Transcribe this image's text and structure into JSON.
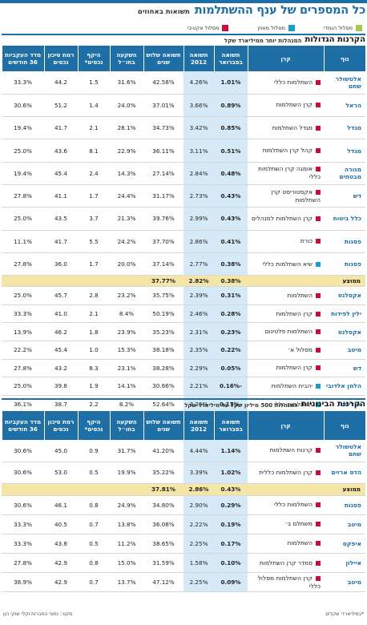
{
  "header": {
    "title": "כל המספרים של ענף ההשתלמות",
    "subtitle": "תשואות באחוזים"
  },
  "legend": [
    {
      "label": "מסלול הנמדי",
      "color": "#a6c94b"
    },
    {
      "label": "מסלול מאוזן",
      "color": "#13a0c4"
    },
    {
      "label": "מסלול אקטיבי",
      "color": "#cc0a3e"
    }
  ],
  "columns": [
    "גוף",
    "קרן",
    "תשואה בפברואר",
    "תשואה 2012",
    "תשואה שלוש שנים",
    "השקעה בחו״ל",
    "היקף נכסים*",
    "רמת סיכון נכסים",
    "מדד העקביות 36 חודשים"
  ],
  "section1": {
    "title": "הקרנות הגדולות",
    "subtitle": "המנהלות יותר ממיליארד שקל",
    "rows": [
      {
        "body": "אלטשולר שחם",
        "fund": "השתלמות כללי",
        "color": "#cc0a3e",
        "feb": "1.01%",
        "y2012": "4.26%",
        "y3": "42.58%",
        "abroad": "31.6%",
        "assets": "1.5",
        "risk": "44.2",
        "idx": "33.3%"
      },
      {
        "body": "הראל",
        "fund": "קרן השתלמות",
        "color": "#cc0a3e",
        "feb": "0.89%",
        "y2012": "3.66%",
        "y3": "37.01%",
        "abroad": "24.0%",
        "assets": "1.4",
        "risk": "51.2",
        "idx": "30.6%"
      },
      {
        "body": "מגדל",
        "fund": "מגדל השתלמות",
        "color": "#cc0a3e",
        "feb": "0.85%",
        "y2012": "3.42%",
        "y3": "34.73%",
        "abroad": "28.1%",
        "assets": "2.1",
        "risk": "41.7",
        "idx": "19.4%"
      },
      {
        "body": "מגדל",
        "fund": "קהל קרן השתלמות",
        "color": "#cc0a3e",
        "feb": "0.51%",
        "y2012": "3.11%",
        "y3": "36.11%",
        "abroad": "22.9%",
        "assets": "8.1",
        "risk": "43.6",
        "idx": "25.0%"
      },
      {
        "body": "מנורה מבטחים",
        "fund": "אומגה קרן השתלמות כללי",
        "color": "#cc0a3e",
        "feb": "0.48%",
        "y2012": "2.84%",
        "y3": "27.14%",
        "abroad": "14.3%",
        "assets": "2.4",
        "risk": "45.4",
        "idx": "19.4%"
      },
      {
        "body": "דש",
        "fund": "אקסטוריסט קרן השתלמות",
        "color": "#cc0a3e",
        "feb": "0.43%",
        "y2012": "2.73%",
        "y3": "31.17%",
        "abroad": "24.4%",
        "assets": "1.7",
        "risk": "41.1",
        "idx": "27.8%"
      },
      {
        "body": "כלל ביטוח",
        "fund": "קרן השתלמות למנהלים",
        "color": "#cc0a3e",
        "feb": "0.43%",
        "y2012": "2.99%",
        "y3": "39.76%",
        "abroad": "21.3%",
        "assets": "3.7",
        "risk": "43.5",
        "idx": "25.0%"
      },
      {
        "body": "פסגות",
        "fund": "כורת",
        "color": "#cc0a3e",
        "feb": "0.41%",
        "y2012": "2.86%",
        "y3": "37.70%",
        "abroad": "24.2%",
        "assets": "5.5",
        "risk": "41.7",
        "idx": "11.1%"
      },
      {
        "body": "פסגות",
        "fund": "שיא השתלמות כללי",
        "color": "#13a0c4",
        "feb": "0.38%",
        "y2012": "2.77%",
        "y3": "37.14%",
        "abroad": "20.0%",
        "assets": "1.7",
        "risk": "36.0",
        "idx": "27.8%"
      }
    ],
    "avg": {
      "label": "ממוצע",
      "feb": "0.38%",
      "y2012": "2.82%",
      "y3": "37.77%"
    },
    "rows2": [
      {
        "body": "אקסלנס",
        "fund": "השתלמות",
        "color": "#cc0a3e",
        "feb": "0.31%",
        "y2012": "2.39%",
        "y3": "35.75%",
        "abroad": "23.2%",
        "assets": "2.8",
        "risk": "45.7",
        "idx": "25.0%"
      },
      {
        "body": "ילין לפידות",
        "fund": "קרן השתלמות",
        "color": "#cc0a3e",
        "feb": "0.28%",
        "y2012": "2.46%",
        "y3": "50.19%",
        "abroad": "8.4%",
        "assets": "2.1",
        "risk": "41.0",
        "idx": "33.3%"
      },
      {
        "body": "אקסלנס",
        "fund": "השתלמות פלטינום",
        "color": "#cc0a3e",
        "feb": "0.23%",
        "y2012": "2.31%",
        "y3": "35.23%",
        "abroad": "23.9%",
        "assets": "1.8",
        "risk": "46.2",
        "idx": "13.9%"
      },
      {
        "body": "מיטב",
        "fund": "מסלול א׳",
        "color": "#cc0a3e",
        "feb": "0.22%",
        "y2012": "2.35%",
        "y3": "38.18%",
        "abroad": "15.3%",
        "assets": "1.0",
        "risk": "45.4",
        "idx": "22.2%"
      },
      {
        "body": "דש",
        "fund": "קרן השתלמות",
        "color": "#cc0a3e",
        "feb": "0.05%",
        "y2012": "2.29%",
        "y3": "38.28%",
        "abroad": "23.1%",
        "assets": "8.3",
        "risk": "43.2",
        "idx": "27.8%"
      },
      {
        "body": "הלמן אלדובי",
        "fund": "יהבית השתלמות",
        "color": "#13a0c4",
        "feb": "-0.16%",
        "y2012": "2.21%",
        "y3": "30.66%",
        "abroad": "14.1%",
        "assets": "1.9",
        "risk": "39.8",
        "idx": "25.0%"
      },
      {
        "body": "אנליסט",
        "fund": "השתלמות כללי",
        "color": "#13a0c4",
        "feb": "-0.17%",
        "y2012": "2.25%",
        "y3": "52.64%",
        "abroad": "8.2%",
        "assets": "2.2",
        "risk": "38.7",
        "idx": "36.1%"
      }
    ]
  },
  "section2": {
    "title": "הקרנות הבינוניות",
    "subtitle": "המנהלות 500 מיליון שקל עד מיליארד שקל",
    "rows": [
      {
        "body": "אלטשולר שחם",
        "fund": "קרנות השתלמות",
        "color": "#cc0a3e",
        "feb": "1.14%",
        "y2012": "4.44%",
        "y3": "41.20%",
        "abroad": "31.7%",
        "assets": "0.9",
        "risk": "45.0",
        "idx": "30.6%"
      },
      {
        "body": "הדס ארזים",
        "fund": "קרן השתלמות כללית",
        "color": "#cc0a3e",
        "feb": "1.02%",
        "y2012": "3.39%",
        "y3": "35.22%",
        "abroad": "19.9%",
        "assets": "0.5",
        "risk": "53.0",
        "idx": "30.6%"
      }
    ],
    "avg": {
      "label": "ממוצע",
      "feb": "0.43%",
      "y2012": "2.86%",
      "y3": "37.81%"
    },
    "rows2": [
      {
        "body": "פסגות",
        "fund": "השתלמות כללי",
        "color": "#cc0a3e",
        "feb": "0.29%",
        "y2012": "2.90%",
        "y3": "34.80%",
        "abroad": "24.9%",
        "assets": "0.8",
        "risk": "46.1",
        "idx": "30.6%"
      },
      {
        "body": "מיטב",
        "fund": "משתלם ב׳",
        "color": "#cc0a3e",
        "feb": "0.19%",
        "y2012": "2.22%",
        "y3": "36.08%",
        "abroad": "13.8%",
        "assets": "0.7",
        "risk": "40.5",
        "idx": "33.3%"
      },
      {
        "body": "איפקס",
        "fund": "השתלמות",
        "color": "#cc0a3e",
        "feb": "0.17%",
        "y2012": "2.25%",
        "y3": "38.65%",
        "abroad": "11.2%",
        "assets": "0.5",
        "risk": "43.8",
        "idx": "33.3%"
      },
      {
        "body": "איילון",
        "fund": "סמדר קרן השתלמות",
        "color": "#cc0a3e",
        "feb": "0.10%",
        "y2012": "1.58%",
        "y3": "31.59%",
        "abroad": "15.0%",
        "assets": "0.8",
        "risk": "42.9",
        "idx": "27.8%"
      },
      {
        "body": "מיטב",
        "fund": "קרן השתלמות מסלול כללי",
        "color": "#cc0a3e",
        "feb": "0.09%",
        "y2012": "2.25%",
        "y3": "47.12%",
        "abroad": "13.7%",
        "assets": "0.7",
        "risk": "42.9",
        "idx": "38.9%"
      }
    ]
  },
  "footer": {
    "note": "*במיליארדי שקלים",
    "source": "מקור: נתוני החברות וקלי שוקי הון"
  }
}
